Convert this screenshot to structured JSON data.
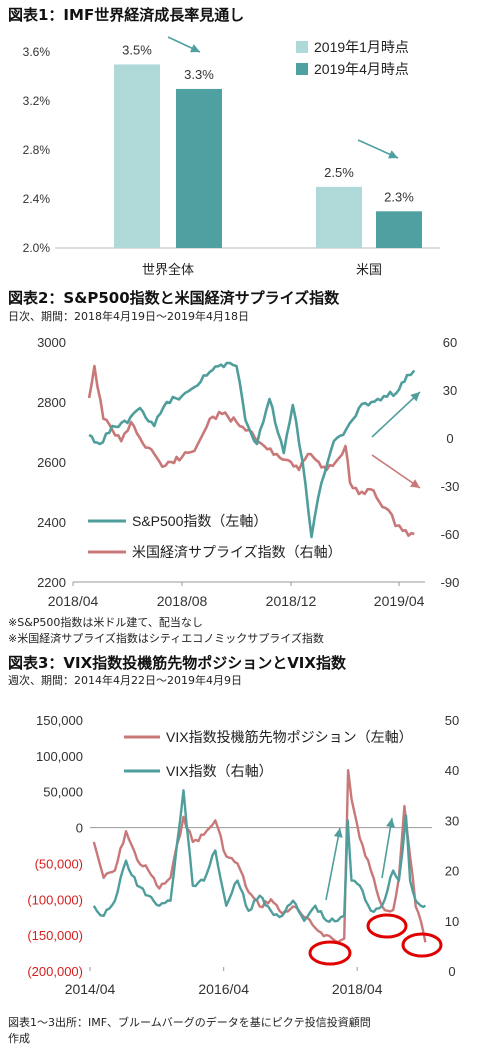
{
  "charts": {
    "c1": {
      "title": "図表1：IMF世界経済成長率見通し",
      "chart_data": {
        "type": "bar",
        "categories": [
          "世界全体",
          "米国"
        ],
        "series": [
          {
            "name": "2019年1月時点",
            "values": [
              3.5,
              2.5
            ],
            "labels": [
              "3.5%",
              "2.5%"
            ],
            "color": "#afd8d8"
          },
          {
            "name": "2019年4月時点",
            "values": [
              3.3,
              2.3
            ],
            "labels": [
              "3.3%",
              "2.3%"
            ],
            "color": "#4fa0a0"
          }
        ],
        "yticks": [
          "2.0%",
          "2.4%",
          "2.8%",
          "3.2%",
          "3.6%"
        ],
        "ylim": [
          2.0,
          3.7
        ],
        "legend": "top-right",
        "arrows": "downward arrows between bars indicating downward revisions"
      }
    },
    "c2": {
      "title": "図表2：S&P500指数と米国経済サプライズ指数",
      "subtitle": "日次、期間：2018年4月19日～2019年4月18日",
      "chart_data": {
        "type": "line",
        "series": [
          {
            "name": "S&P500指数（左軸）",
            "color": "#4f9e9c",
            "axis": "left",
            "points": [
              [
                "2018-04-19",
                2690
              ],
              [
                "2018-05-01",
                2660
              ],
              [
                "2018-05-15",
                2720
              ],
              [
                "2018-06-01",
                2730
              ],
              [
                "2018-06-15",
                2780
              ],
              [
                "2018-07-01",
                2720
              ],
              [
                "2018-07-15",
                2800
              ],
              [
                "2018-08-01",
                2820
              ],
              [
                "2018-08-15",
                2850
              ],
              [
                "2018-09-01",
                2900
              ],
              [
                "2018-09-20",
                2930
              ],
              [
                "2018-10-01",
                2920
              ],
              [
                "2018-10-11",
                2740
              ],
              [
                "2018-10-24",
                2660
              ],
              [
                "2018-11-07",
                2810
              ],
              [
                "2018-11-23",
                2630
              ],
              [
                "2018-12-03",
                2790
              ],
              [
                "2018-12-14",
                2600
              ],
              [
                "2018-12-24",
                2350
              ],
              [
                "2019-01-04",
                2530
              ],
              [
                "2019-01-18",
                2670
              ],
              [
                "2019-02-01",
                2710
              ],
              [
                "2019-02-15",
                2780
              ],
              [
                "2019-03-01",
                2800
              ],
              [
                "2019-03-15",
                2820
              ],
              [
                "2019-03-29",
                2830
              ],
              [
                "2019-04-10",
                2890
              ],
              [
                "2019-04-18",
                2905
              ]
            ]
          },
          {
            "name": "米国経済サプライズ指数（右軸）",
            "color": "#c87878",
            "axis": "right",
            "points": [
              [
                "2018-04-19",
                25
              ],
              [
                "2018-04-25",
                45
              ],
              [
                "2018-05-05",
                12
              ],
              [
                "2018-05-15",
                5
              ],
              [
                "2018-05-25",
                -2
              ],
              [
                "2018-06-05",
                10
              ],
              [
                "2018-06-15",
                0
              ],
              [
                "2018-07-01",
                -10
              ],
              [
                "2018-07-10",
                -18
              ],
              [
                "2018-07-20",
                -15
              ],
              [
                "2018-08-01",
                -12
              ],
              [
                "2018-08-15",
                -8
              ],
              [
                "2018-09-01",
                12
              ],
              [
                "2018-09-15",
                15
              ],
              [
                "2018-10-01",
                10
              ],
              [
                "2018-10-15",
                5
              ],
              [
                "2018-11-01",
                -5
              ],
              [
                "2018-11-15",
                -10
              ],
              [
                "2018-12-01",
                -15
              ],
              [
                "2018-12-10",
                -20
              ],
              [
                "2018-12-20",
                -10
              ],
              [
                "2019-01-01",
                -15
              ],
              [
                "2019-01-10",
                -20
              ],
              [
                "2019-01-20",
                -15
              ],
              [
                "2019-01-31",
                -5
              ],
              [
                "2019-02-05",
                -28
              ],
              [
                "2019-02-15",
                -35
              ],
              [
                "2019-02-28",
                -32
              ],
              [
                "2019-03-10",
                -40
              ],
              [
                "2019-03-20",
                -45
              ],
              [
                "2019-03-28",
                -55
              ],
              [
                "2019-04-05",
                -58
              ],
              [
                "2019-04-18",
                -60
              ]
            ]
          }
        ],
        "yticks_left": [
          "2200",
          "2400",
          "2600",
          "2800",
          "3000"
        ],
        "ylim_left": [
          2200,
          3000
        ],
        "yticks_right": [
          "-90",
          "-60",
          "-30",
          "0",
          "30",
          "60"
        ],
        "ylim_right": [
          -90,
          60
        ],
        "xticks": [
          "2018/04",
          "2018/08",
          "2018/12",
          "2019/04"
        ],
        "xlim": [
          "2018-04-01",
          "2019-04-30"
        ],
        "legend": "bottom-left"
      },
      "notes": [
        "※S&P500指数は米ドル建て、配当なし",
        "※米国経済サプライズ指数はシティエコノミックサプライズ指数"
      ]
    },
    "c3": {
      "title": "図表3：VIX指数投機筋先物ポジションとVIX指数",
      "subtitle": "週次、期間：2014年4月22日～2019年4月9日",
      "chart_data": {
        "type": "line",
        "series": [
          {
            "name": "VIX指数投機筋先物ポジション（左軸）",
            "color": "#c87878",
            "axis": "left",
            "points": [
              [
                "2014-04-22",
                -20000
              ],
              [
                "2014-06-15",
                -70000
              ],
              [
                "2014-08-15",
                -60000
              ],
              [
                "2014-10-15",
                -5000
              ],
              [
                "2014-12-15",
                -45000
              ],
              [
                "2015-02-15",
                -60000
              ],
              [
                "2015-04-15",
                -85000
              ],
              [
                "2015-06-15",
                -70000
              ],
              [
                "2015-08-25",
                15000
              ],
              [
                "2015-10-15",
                -20000
              ],
              [
                "2015-12-15",
                -10000
              ],
              [
                "2016-02-15",
                10000
              ],
              [
                "2016-04-15",
                -40000
              ],
              [
                "2016-06-15",
                -50000
              ],
              [
                "2016-08-15",
                -90000
              ],
              [
                "2016-10-15",
                -110000
              ],
              [
                "2016-12-15",
                -100000
              ],
              [
                "2017-02-15",
                -120000
              ],
              [
                "2017-04-15",
                -110000
              ],
              [
                "2017-06-15",
                -125000
              ],
              [
                "2017-08-15",
                -140000
              ],
              [
                "2017-10-15",
                -150000
              ],
              [
                "2017-12-15",
                -160000
              ],
              [
                "2018-01-20",
                -155000
              ],
              [
                "2018-02-10",
                80000
              ],
              [
                "2018-03-01",
                40000
              ],
              [
                "2018-04-15",
                -15000
              ],
              [
                "2018-06-15",
                -60000
              ],
              [
                "2018-08-15",
                -110000
              ],
              [
                "2018-10-15",
                -115000
              ],
              [
                "2018-11-15",
                -70000
              ],
              [
                "2018-12-15",
                30000
              ],
              [
                "2019-01-15",
                -40000
              ],
              [
                "2019-02-15",
                -110000
              ],
              [
                "2019-03-15",
                -130000
              ],
              [
                "2019-04-09",
                -160000
              ]
            ]
          },
          {
            "name": "VIX指数（右軸）",
            "color": "#4f9e9c",
            "axis": "right",
            "points": [
              [
                "2014-04-22",
                13
              ],
              [
                "2014-06-15",
                11
              ],
              [
                "2014-08-15",
                14
              ],
              [
                "2014-10-15",
                22
              ],
              [
                "2014-12-15",
                17
              ],
              [
                "2015-02-15",
                15
              ],
              [
                "2015-04-15",
                13
              ],
              [
                "2015-06-15",
                14
              ],
              [
                "2015-08-25",
                36
              ],
              [
                "2015-10-15",
                17
              ],
              [
                "2015-12-15",
                18
              ],
              [
                "2016-02-15",
                24
              ],
              [
                "2016-04-15",
                13
              ],
              [
                "2016-06-15",
                18
              ],
              [
                "2016-08-15",
                12
              ],
              [
                "2016-10-15",
                15
              ],
              [
                "2016-12-15",
                12
              ],
              [
                "2017-02-15",
                11
              ],
              [
                "2017-04-15",
                14
              ],
              [
                "2017-06-15",
                10
              ],
              [
                "2017-08-15",
                13
              ],
              [
                "2017-10-15",
                10
              ],
              [
                "2017-12-15",
                10
              ],
              [
                "2018-01-20",
                11
              ],
              [
                "2018-02-08",
                30
              ],
              [
                "2018-03-01",
                18
              ],
              [
                "2018-04-15",
                17
              ],
              [
                "2018-06-15",
                12
              ],
              [
                "2018-08-15",
                13
              ],
              [
                "2018-10-15",
                20
              ],
              [
                "2018-11-15",
                18
              ],
              [
                "2018-12-24",
                31
              ],
              [
                "2019-01-15",
                18
              ],
              [
                "2019-02-15",
                14
              ],
              [
                "2019-03-15",
                13
              ],
              [
                "2019-04-09",
                13
              ]
            ]
          }
        ],
        "yticks_left": [
          "(200,000)",
          "(150,000)",
          "(100,000)",
          "(50,000)",
          "0",
          "50,000",
          "100,000",
          "150,000"
        ],
        "ylim_left": [
          -200000,
          150000
        ],
        "yticks_right": [
          "0",
          "10",
          "20",
          "30",
          "40",
          "50"
        ],
        "ylim_right": [
          0,
          50
        ],
        "xticks": [
          "2014/04",
          "2016/04",
          "2018/04"
        ],
        "xlim": [
          "2014-04-01",
          "2019-05-15"
        ],
        "legend": "top-right",
        "negative_tick_color": "#d42020"
      },
      "notes": [
        "図表1～3出所：IMF、ブルームバーグのデータを基にピクテ投信投資顧問",
        "作成"
      ]
    }
  }
}
